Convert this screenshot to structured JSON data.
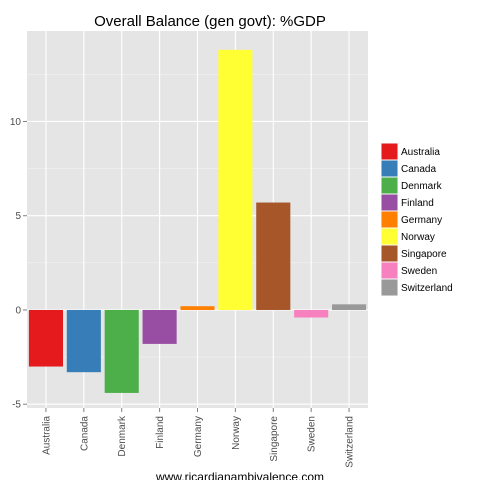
{
  "chart_data": {
    "type": "bar",
    "title": "Overall Balance (gen govt): %GDP",
    "xlabel": "www.ricardianambivalence.com",
    "ylabel": "",
    "categories": [
      "Australia",
      "Canada",
      "Denmark",
      "Finland",
      "Germany",
      "Norway",
      "Singapore",
      "Sweden",
      "Switzerland"
    ],
    "values": [
      -3.0,
      -3.3,
      -4.4,
      -1.8,
      0.2,
      13.8,
      5.7,
      -0.4,
      0.3
    ],
    "colors": [
      "#E41A1C",
      "#377EB8",
      "#4DAF4A",
      "#984EA3",
      "#FF7F00",
      "#FFFF33",
      "#A65628",
      "#F781BF",
      "#999999"
    ],
    "ylim": [
      -5.2,
      14.8
    ],
    "yticks": [
      -5,
      0,
      5,
      10
    ],
    "ytick_labels": [
      "-5",
      "0",
      "5",
      "10"
    ],
    "grid": true,
    "legend": "right",
    "legend_entries": [
      "Australia",
      "Canada",
      "Denmark",
      "Finland",
      "Germany",
      "Norway",
      "Singapore",
      "Sweden",
      "Switzerland"
    ],
    "panel_background": "#E5E5E5",
    "grid_color": "#FFFFFF"
  }
}
